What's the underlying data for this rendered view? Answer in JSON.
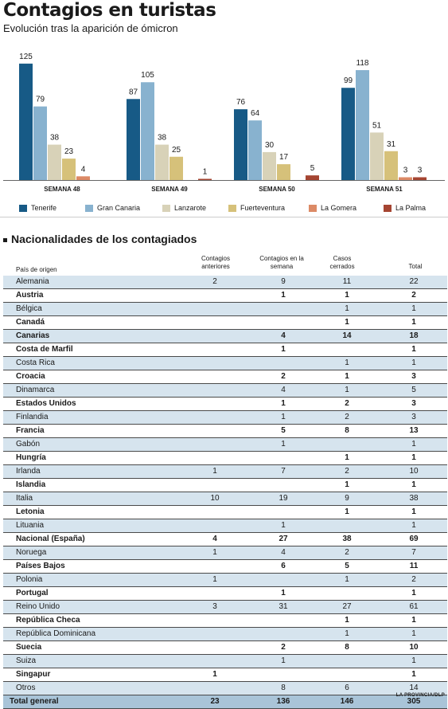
{
  "header": {
    "title": "Contagios en turistas",
    "subtitle": "Evolución tras la aparición de ómicron"
  },
  "colors": {
    "Tenerife": "#175a86",
    "Gran Canaria": "#88b2cf",
    "Lanzarote": "#d8d2b8",
    "Fuerteventura": "#d6c17a",
    "La Gomera": "#dc8a66",
    "La Palma": "#a54532",
    "table_alt_row": "#d6e4ee",
    "table_total_row": "#a9c4d8"
  },
  "chart_data": {
    "type": "bar",
    "categories": [
      "SEMANA 48",
      "SEMANA 49",
      "SEMANA 50",
      "SEMANA 51"
    ],
    "series": [
      {
        "name": "Tenerife",
        "values": [
          125,
          87,
          76,
          99
        ]
      },
      {
        "name": "Gran Canaria",
        "values": [
          79,
          105,
          64,
          118
        ]
      },
      {
        "name": "Lanzarote",
        "values": [
          38,
          38,
          30,
          51
        ]
      },
      {
        "name": "Fuerteventura",
        "values": [
          23,
          25,
          17,
          31
        ]
      },
      {
        "name": "La Gomera",
        "values": [
          4,
          null,
          null,
          3
        ]
      },
      {
        "name": "La Palma",
        "values": [
          null,
          1,
          5,
          3
        ]
      }
    ],
    "ylim": [
      0,
      130
    ],
    "grid": false,
    "legend": "bottom"
  },
  "table": {
    "section_title": "Nacionalidades de los contagiados",
    "columns": [
      "País de origen",
      "Contagios anteriores",
      "Contagios en la semana",
      "Casos cerrados",
      "Total"
    ],
    "rows": [
      {
        "name": "Alemania",
        "prev": "2",
        "week": "9",
        "closed": "11",
        "total": "22",
        "bold": false
      },
      {
        "name": "Austria",
        "prev": "",
        "week": "1",
        "closed": "1",
        "total": "2",
        "bold": true
      },
      {
        "name": "Bélgica",
        "prev": "",
        "week": "",
        "closed": "1",
        "total": "1",
        "bold": false
      },
      {
        "name": "Canadá",
        "prev": "",
        "week": "",
        "closed": "1",
        "total": "1",
        "bold": true
      },
      {
        "name": "Canarias",
        "prev": "",
        "week": "4",
        "closed": "14",
        "total": "18",
        "bold": true
      },
      {
        "name": "Costa de Marfil",
        "prev": "",
        "week": "1",
        "closed": "",
        "total": "1",
        "bold": true
      },
      {
        "name": "Costa Rica",
        "prev": "",
        "week": "",
        "closed": "1",
        "total": "1",
        "bold": false
      },
      {
        "name": "Croacia",
        "prev": "",
        "week": "2",
        "closed": "1",
        "total": "3",
        "bold": true
      },
      {
        "name": "Dinamarca",
        "prev": "",
        "week": "4",
        "closed": "1",
        "total": "5",
        "bold": false
      },
      {
        "name": "Estados Unidos",
        "prev": "",
        "week": "1",
        "closed": "2",
        "total": "3",
        "bold": true
      },
      {
        "name": "Finlandia",
        "prev": "",
        "week": "1",
        "closed": "2",
        "total": "3",
        "bold": false
      },
      {
        "name": "Francia",
        "prev": "",
        "week": "5",
        "closed": "8",
        "total": "13",
        "bold": true
      },
      {
        "name": "Gabón",
        "prev": "",
        "week": "1",
        "closed": "",
        "total": "1",
        "bold": false
      },
      {
        "name": "Hungría",
        "prev": "",
        "week": "",
        "closed": "1",
        "total": "1",
        "bold": true
      },
      {
        "name": "Irlanda",
        "prev": "1",
        "week": "7",
        "closed": "2",
        "total": "10",
        "bold": false
      },
      {
        "name": "Islandia",
        "prev": "",
        "week": "",
        "closed": "1",
        "total": "1",
        "bold": true
      },
      {
        "name": "Italia",
        "prev": "10",
        "week": "19",
        "closed": "9",
        "total": "38",
        "bold": false
      },
      {
        "name": "Letonia",
        "prev": "",
        "week": "",
        "closed": "1",
        "total": "1",
        "bold": true
      },
      {
        "name": "Lituania",
        "prev": "",
        "week": "1",
        "closed": "",
        "total": "1",
        "bold": false
      },
      {
        "name": "Nacional (España)",
        "prev": "4",
        "week": "27",
        "closed": "38",
        "total": "69",
        "bold": true
      },
      {
        "name": "Noruega",
        "prev": "1",
        "week": "4",
        "closed": "2",
        "total": "7",
        "bold": false
      },
      {
        "name": "Países Bajos",
        "prev": "",
        "week": "6",
        "closed": "5",
        "total": "11",
        "bold": true
      },
      {
        "name": "Polonia",
        "prev": "1",
        "week": "",
        "closed": "1",
        "total": "2",
        "bold": false
      },
      {
        "name": "Portugal",
        "prev": "",
        "week": "1",
        "closed": "",
        "total": "1",
        "bold": true
      },
      {
        "name": "Reino Unido",
        "prev": "3",
        "week": "31",
        "closed": "27",
        "total": "61",
        "bold": false
      },
      {
        "name": "República Checa",
        "prev": "",
        "week": "",
        "closed": "1",
        "total": "1",
        "bold": true
      },
      {
        "name": "República Dominicana",
        "prev": "",
        "week": "",
        "closed": "1",
        "total": "1",
        "bold": false
      },
      {
        "name": "Suecia",
        "prev": "",
        "week": "2",
        "closed": "8",
        "total": "10",
        "bold": true
      },
      {
        "name": "Suiza",
        "prev": "",
        "week": "1",
        "closed": "",
        "total": "1",
        "bold": false
      },
      {
        "name": "Singapur",
        "prev": "1",
        "week": "",
        "closed": "",
        "total": "1",
        "bold": true
      },
      {
        "name": "Otros",
        "prev": "",
        "week": "8",
        "closed": "6",
        "total": "14",
        "bold": false
      }
    ],
    "total_row": {
      "name": "Total general",
      "prev": "23",
      "week": "136",
      "closed": "146",
      "total": "305"
    }
  },
  "credit": "LA PROVINCIA/DLP"
}
